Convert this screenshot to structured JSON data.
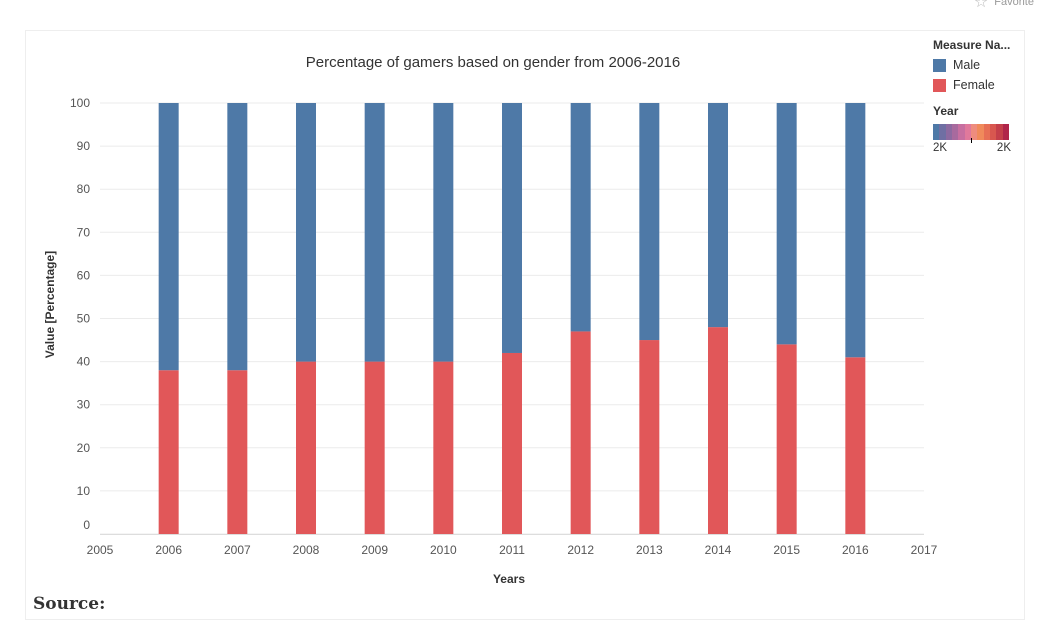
{
  "top": {
    "favorite_label": "Favorite",
    "favorite_icon": "star-icon"
  },
  "source_label": "Source:",
  "legend": {
    "measure_title": "Measure Na...",
    "items": [
      {
        "label": "Male",
        "color": "#4E79A7"
      },
      {
        "label": "Female",
        "color": "#E15759"
      }
    ],
    "year_title": "Year",
    "ramp_colors": [
      "#4E79A7",
      "#6F6FA3",
      "#8D6AA0",
      "#A86A9E",
      "#C76FA0",
      "#E0799C",
      "#EE8C7E",
      "#F08A5B",
      "#E76F55",
      "#D8574F",
      "#C43F4A",
      "#B0254A"
    ],
    "ramp_min_label": "2K",
    "ramp_max_label": "2K"
  },
  "chart_data": {
    "type": "bar",
    "stacked": true,
    "title": "Percentage of gamers based on gender from 2006-2016",
    "xlabel": "Years",
    "ylabel": "Value [Percentage]",
    "x_ticks": [
      "2005",
      "2006",
      "2007",
      "2008",
      "2009",
      "2010",
      "2011",
      "2012",
      "2013",
      "2014",
      "2015",
      "2016",
      "2017"
    ],
    "categories": [
      "2006",
      "2007",
      "2008",
      "2009",
      "2010",
      "2011",
      "2012",
      "2013",
      "2014",
      "2015",
      "2016"
    ],
    "series": [
      {
        "name": "Female",
        "color": "#E15759",
        "values": [
          38,
          38,
          40,
          40,
          40,
          42,
          47,
          45,
          48,
          44,
          41
        ]
      },
      {
        "name": "Male",
        "color": "#4E79A7",
        "values": [
          62,
          62,
          60,
          60,
          60,
          58,
          53,
          55,
          52,
          56,
          59
        ]
      }
    ],
    "y_ticks": [
      0,
      10,
      20,
      30,
      40,
      50,
      60,
      70,
      80,
      90,
      100
    ],
    "ylim": [
      0,
      100
    ],
    "xlim": [
      2005,
      2017
    ],
    "grid": true,
    "legend_position": "top-right"
  }
}
